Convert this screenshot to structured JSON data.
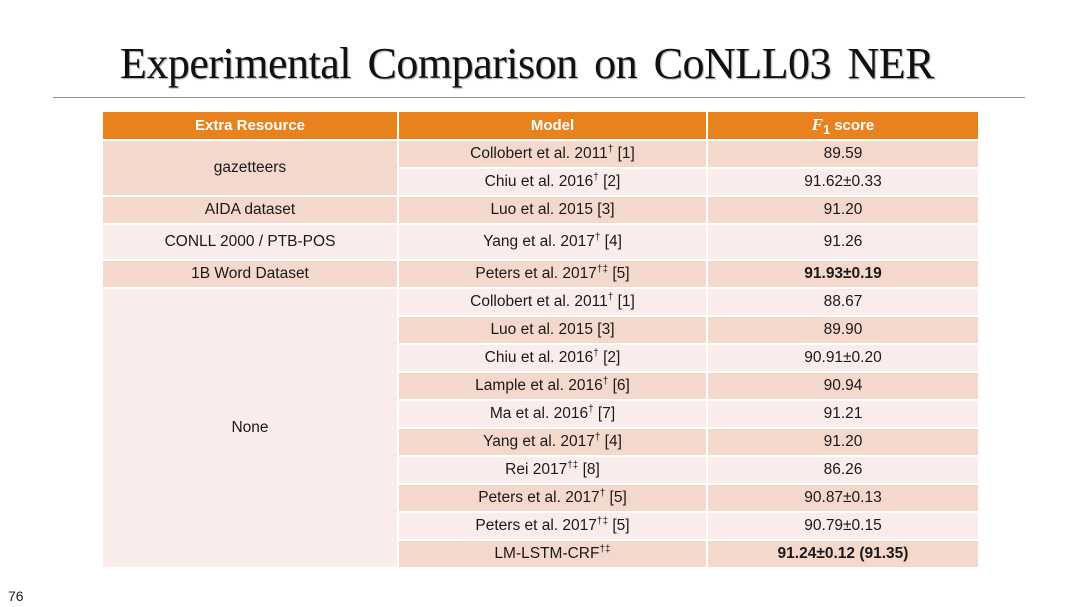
{
  "title": "Experimental Comparison on CoNLL03 NER",
  "page_number": "76",
  "table": {
    "headers": {
      "resource": "Extra Resource",
      "model": "Model",
      "f1_symbol": "F",
      "f1_sub": "1",
      "f1_word": " score"
    },
    "groups": [
      {
        "resource": "gazetteers",
        "rows": [
          {
            "model": "Collobert et al. 2011",
            "mark": "†",
            "ref": " [1]",
            "score": "89.59",
            "bold": false
          },
          {
            "model": "Chiu et al. 2016",
            "mark": "†",
            "ref": " [2]",
            "score": "91.62±0.33",
            "bold": false
          }
        ]
      },
      {
        "resource": "AIDA dataset",
        "rows": [
          {
            "model": "Luo et al. 2015 [3]",
            "mark": "",
            "ref": "",
            "score": "91.20",
            "bold": false
          }
        ]
      },
      {
        "resource": "CONLL 2000 / PTB-POS",
        "rows": [
          {
            "model": "Yang et al. 2017",
            "mark": "†",
            "ref": " [4]",
            "score": "91.26",
            "bold": false
          }
        ]
      },
      {
        "resource": "1B Word Dataset",
        "rows": [
          {
            "model": "Peters et al. 2017",
            "mark": "†‡",
            "ref": " [5]",
            "score": "91.93±0.19",
            "bold": true
          }
        ]
      },
      {
        "resource": "None",
        "rows": [
          {
            "model": "Collobert et al. 2011",
            "mark": "†",
            "ref": " [1]",
            "score": "88.67",
            "bold": false
          },
          {
            "model": "Luo et al. 2015 [3]",
            "mark": "",
            "ref": "",
            "score": "89.90",
            "bold": false
          },
          {
            "model": "Chiu et al. 2016",
            "mark": "†",
            "ref": " [2]",
            "score": "90.91±0.20",
            "bold": false
          },
          {
            "model": "Lample et al. 2016",
            "mark": "†",
            "ref": " [6]",
            "score": "90.94",
            "bold": false
          },
          {
            "model": "Ma et al. 2016",
            "mark": "†",
            "ref": " [7]",
            "score": "91.21",
            "bold": false
          },
          {
            "model": "Yang et al. 2017",
            "mark": "†",
            "ref": " [4]",
            "score": "91.20",
            "bold": false
          },
          {
            "model": "Rei 2017",
            "mark": "†‡",
            "ref": " [8]",
            "score": "86.26",
            "bold": false
          },
          {
            "model": "Peters et al. 2017",
            "mark": "†",
            "ref": " [5]",
            "score": "90.87±0.13",
            "bold": false
          },
          {
            "model": "Peters et al. 2017",
            "mark": "†‡",
            "ref": " [5]",
            "score": "90.79±0.15",
            "bold": false
          },
          {
            "model": "LM-LSTM-CRF",
            "mark": "†‡",
            "ref": "",
            "score": "91.24±0.12 (91.35)",
            "bold": true
          }
        ]
      }
    ]
  },
  "colors": {
    "header": "#e8821e",
    "row_dark": "#f4d8cb",
    "row_light": "#faecea"
  }
}
